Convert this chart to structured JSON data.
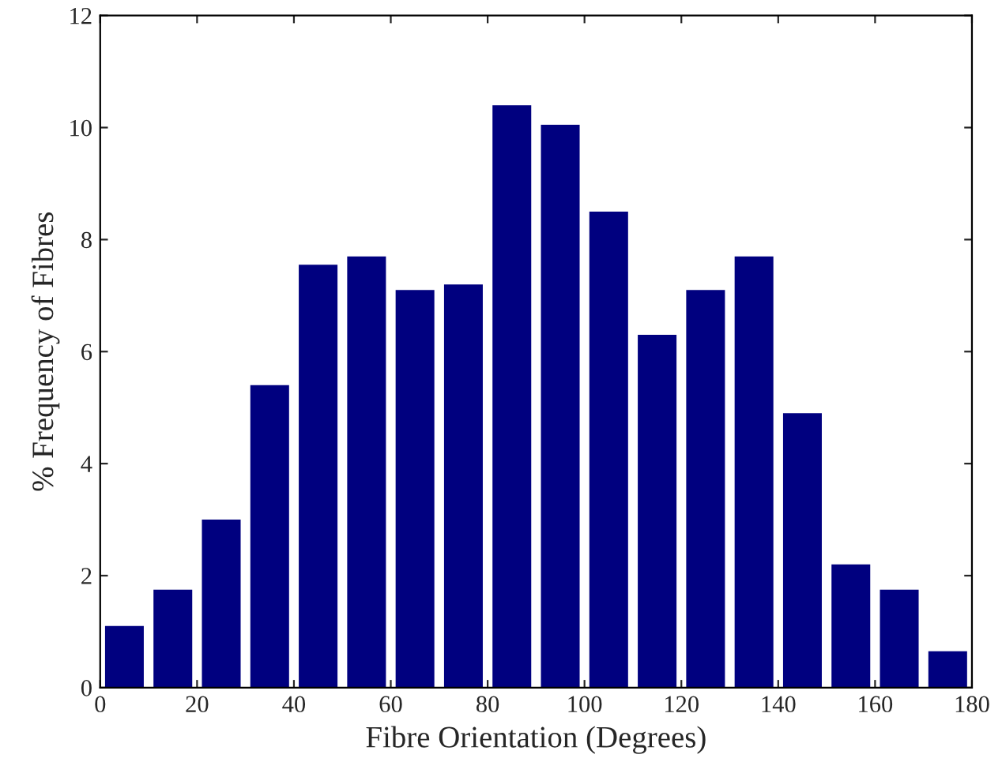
{
  "chart_data": {
    "type": "histogram",
    "xlabel": "Fibre Orientation (Degrees)",
    "ylabel": "% Frequency of Fibres",
    "bins": [
      0,
      10,
      20,
      30,
      40,
      50,
      60,
      70,
      80,
      90,
      100,
      110,
      120,
      130,
      140,
      150,
      160,
      170,
      180
    ],
    "values": [
      1.1,
      1.75,
      3.0,
      5.4,
      7.55,
      7.7,
      7.1,
      7.2,
      10.4,
      10.05,
      8.5,
      6.3,
      7.1,
      7.7,
      4.9,
      2.2,
      1.75,
      0.65
    ],
    "color": "#00007f",
    "xlim": [
      0,
      180
    ],
    "xticks": [
      0,
      20,
      40,
      60,
      80,
      100,
      120,
      140,
      160,
      180
    ],
    "ylim": [
      0,
      12
    ],
    "yticks": [
      0,
      2,
      4,
      6,
      8,
      10,
      12
    ],
    "grid": false
  }
}
